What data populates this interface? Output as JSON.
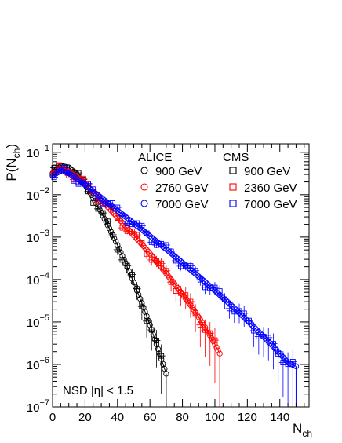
{
  "chart_data": {
    "type": "scatter",
    "title": "",
    "xlabel": "N",
    "xlabel_sub": "ch",
    "ylabel": "P(N",
    "ylabel_sub": "ch",
    "ylabel_close": ")",
    "xlim": [
      0,
      158
    ],
    "ylim_log10": [
      -7,
      -0.8
    ],
    "y_scale": "log",
    "x_ticks": [
      0,
      20,
      40,
      60,
      80,
      100,
      120,
      140
    ],
    "y_tick_exponents": [
      -7,
      -6,
      -5,
      -4,
      -3,
      -2,
      -1
    ],
    "annotation": "NSD |η| < 1.5",
    "legend": {
      "placement": "top-right",
      "group_titles": [
        "ALICE",
        "CMS"
      ],
      "entries": [
        {
          "experiment": "ALICE",
          "label": "900 GeV",
          "marker": "circle",
          "color": "#000000"
        },
        {
          "experiment": "ALICE",
          "label": "2760 GeV",
          "marker": "circle",
          "color": "#ff0000"
        },
        {
          "experiment": "ALICE",
          "label": "7000 GeV",
          "marker": "circle",
          "color": "#0000ff"
        },
        {
          "experiment": "CMS",
          "label": "900 GeV",
          "marker": "square",
          "color": "#000000"
        },
        {
          "experiment": "CMS",
          "label": "2360 GeV",
          "marker": "square",
          "color": "#ff0000"
        },
        {
          "experiment": "CMS",
          "label": "7000 GeV",
          "marker": "square",
          "color": "#0000ff"
        }
      ]
    },
    "series": [
      {
        "experiment": "ALICE",
        "energy": "900 GeV",
        "color": "#000000",
        "marker": "circle",
        "x": [
          0,
          5,
          10,
          15,
          20,
          25,
          30,
          35,
          40,
          45,
          50,
          55,
          60,
          65,
          70
        ],
        "y": [
          0.032,
          0.048,
          0.044,
          0.03,
          0.017,
          0.0085,
          0.0038,
          0.0016,
          0.00065,
          0.00024,
          8.5e-05,
          2.8e-05,
          8.5e-06,
          2.3e-06,
          6e-07
        ]
      },
      {
        "experiment": "ALICE",
        "energy": "2760 GeV",
        "color": "#ff0000",
        "marker": "circle",
        "x": [
          0,
          5,
          10,
          15,
          20,
          25,
          30,
          35,
          40,
          45,
          50,
          55,
          60,
          65,
          70,
          75,
          80,
          85,
          90,
          95,
          100,
          103
        ],
        "y": [
          0.03,
          0.04,
          0.035,
          0.026,
          0.018,
          0.012,
          0.0075,
          0.0047,
          0.0029,
          0.0018,
          0.0011,
          0.00068,
          0.00041,
          0.00024,
          0.00014,
          8e-05,
          4.5e-05,
          2.5e-05,
          1.3e-05,
          6.5e-06,
          3e-06,
          1.8e-06
        ]
      },
      {
        "experiment": "ALICE",
        "energy": "7000 GeV",
        "color": "#0000ff",
        "marker": "circle",
        "x": [
          0,
          5,
          10,
          15,
          20,
          25,
          30,
          35,
          40,
          45,
          50,
          55,
          60,
          65,
          70,
          75,
          80,
          85,
          90,
          95,
          100,
          105,
          110,
          115,
          120,
          125,
          130,
          135,
          140,
          145,
          150
        ],
        "y": [
          0.028,
          0.037,
          0.032,
          0.024,
          0.017,
          0.012,
          0.0085,
          0.006,
          0.0042,
          0.003,
          0.0021,
          0.0015,
          0.00105,
          0.00074,
          0.00052,
          0.00036,
          0.00025,
          0.00017,
          0.000118,
          8.1e-05,
          5.5e-05,
          3.7e-05,
          2.5e-05,
          1.65e-05,
          1.08e-05,
          7e-06,
          4.5e-06,
          2.9e-06,
          1.8e-06,
          1.1e-06,
          9e-07
        ]
      }
    ]
  }
}
